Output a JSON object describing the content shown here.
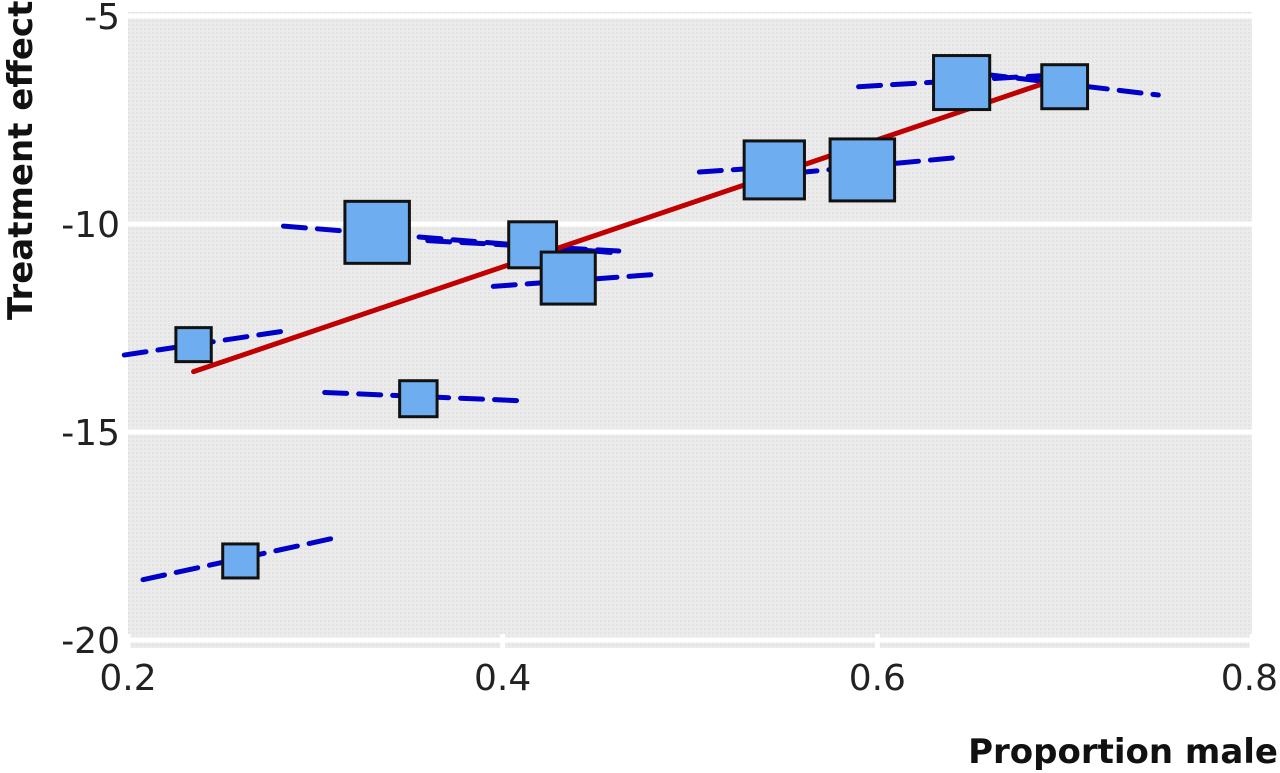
{
  "chart_data": {
    "type": "scatter",
    "title": "",
    "xlabel": "Proportion male",
    "ylabel": "Treatment effect",
    "xlim": [
      0.2,
      0.8
    ],
    "ylim": [
      -20.5,
      -4.5
    ],
    "xticks": [
      0.2,
      0.4,
      0.6,
      0.8
    ],
    "xtick_labels": [
      "0.2",
      "0.4",
      "0.6",
      "0.8"
    ],
    "yticks": [
      -5,
      -10,
      -15,
      -20
    ],
    "ytick_labels": [
      "-5",
      "-10",
      "-15",
      "-20"
    ],
    "grid": "major lines on both axes",
    "colors": {
      "panel_bg": "#ebebeb",
      "grid": "#ffffff",
      "marker_fill": "#6eaef0",
      "marker_edge": "#111111",
      "study_line": "#0000c8",
      "regression_line": "#c00000"
    },
    "points": [
      {
        "x": 0.235,
        "y": -12.9,
        "weight": 0.3,
        "line_x": [
          0.198,
          0.287
        ],
        "line_y": [
          -13.15,
          -12.55
        ]
      },
      {
        "x": 0.26,
        "y": -18.1,
        "weight": 0.3,
        "line_x": [
          0.208,
          0.31
        ],
        "line_y": [
          -18.55,
          -17.55
        ]
      },
      {
        "x": 0.333,
        "y": -10.2,
        "weight": 1.0,
        "line_x": [
          0.283,
          0.462
        ],
        "line_y": [
          -10.05,
          -10.7
        ]
      },
      {
        "x": 0.355,
        "y": -14.2,
        "weight": 0.35,
        "line_x": [
          0.305,
          0.41
        ],
        "line_y": [
          -14.05,
          -14.25
        ]
      },
      {
        "x": 0.416,
        "y": -10.5,
        "weight": 0.6,
        "line_x": [
          0.36,
          0.462
        ],
        "line_y": [
          -10.4,
          -10.65
        ]
      },
      {
        "x": 0.435,
        "y": -11.3,
        "weight": 0.75,
        "line_x": [
          0.395,
          0.485
        ],
        "line_y": [
          -11.5,
          -11.2
        ]
      },
      {
        "x": 0.545,
        "y": -8.7,
        "weight": 0.9,
        "line_x": [
          0.505,
          0.555
        ],
        "line_y": [
          -8.75,
          -8.6
        ]
      },
      {
        "x": 0.592,
        "y": -8.7,
        "weight": 1.0,
        "line_x": [
          0.538,
          0.643
        ],
        "line_y": [
          -8.85,
          -8.4
        ]
      },
      {
        "x": 0.645,
        "y": -6.6,
        "weight": 0.8,
        "line_x": [
          0.59,
          0.7
        ],
        "line_y": [
          -6.7,
          -6.4
        ]
      },
      {
        "x": 0.7,
        "y": -6.7,
        "weight": 0.55,
        "line_x": [
          0.657,
          0.75
        ],
        "line_y": [
          -6.4,
          -6.9
        ]
      }
    ],
    "regression_line": {
      "x": [
        0.235,
        0.7
      ],
      "y": [
        -13.55,
        -6.45
      ]
    }
  }
}
